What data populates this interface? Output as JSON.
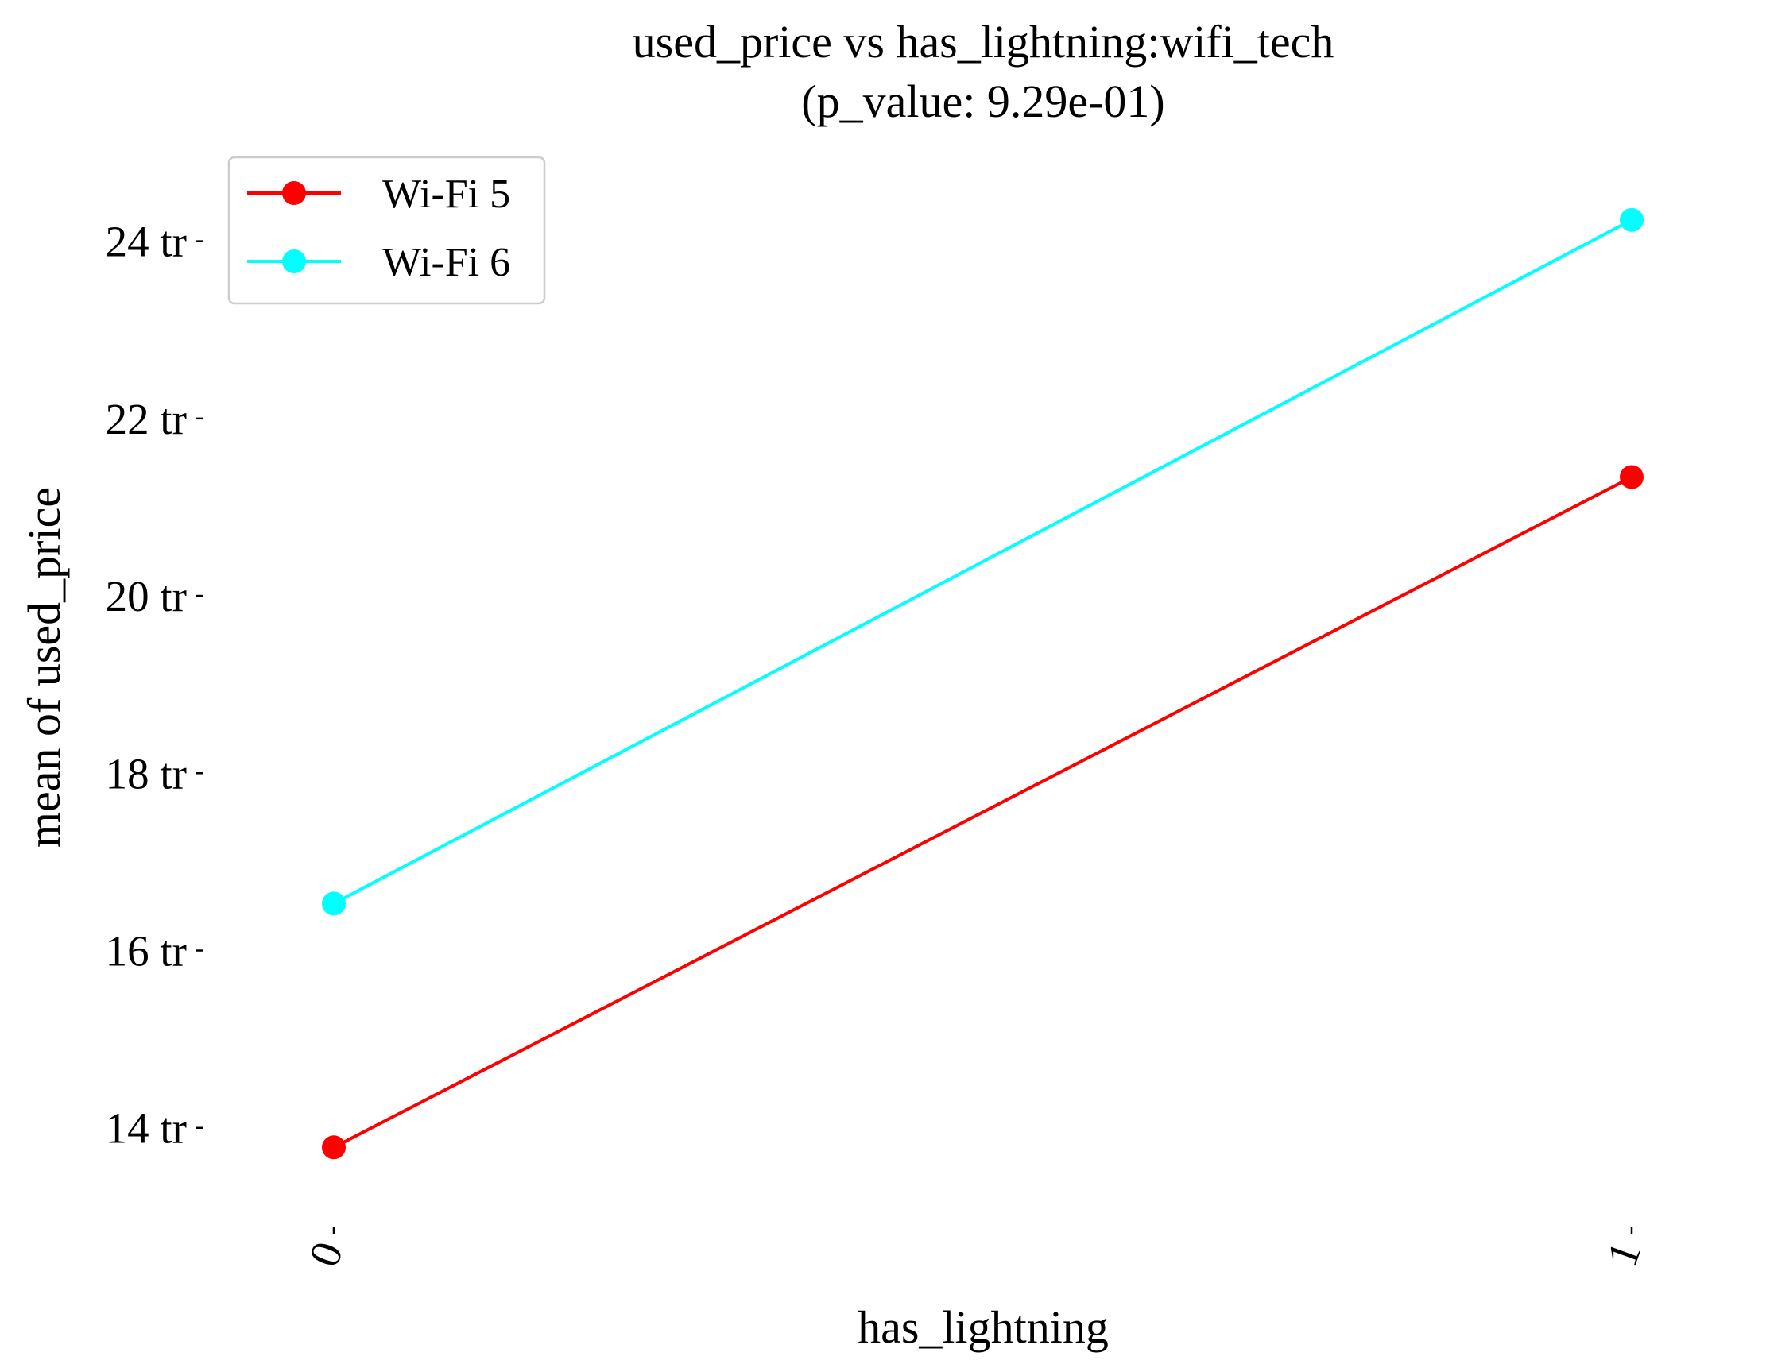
{
  "chart_data": {
    "type": "line",
    "title": "used_price vs has_lightning:wifi_tech",
    "subtitle": "(p_value: 9.29e-01)",
    "xlabel": "has_lightning",
    "ylabel": "mean of used_price",
    "categories": [
      "0",
      "1"
    ],
    "y_ticks": [
      {
        "value": 14,
        "label": "14 tr"
      },
      {
        "value": 16,
        "label": "16 tr"
      },
      {
        "value": 18,
        "label": "18 tr"
      },
      {
        "value": 20,
        "label": "20 tr"
      },
      {
        "value": 22,
        "label": "22 tr"
      },
      {
        "value": 24,
        "label": "24 tr"
      }
    ],
    "ylim": [
      12.6,
      25.0
    ],
    "grid": false,
    "legend_position": "top-left",
    "series": [
      {
        "name": "Wi-Fi 5",
        "color": "#ff0000",
        "values": [
          13.78,
          21.34
        ]
      },
      {
        "name": "Wi-Fi 6",
        "color": "#00ffff",
        "values": [
          16.53,
          24.24
        ]
      }
    ]
  }
}
